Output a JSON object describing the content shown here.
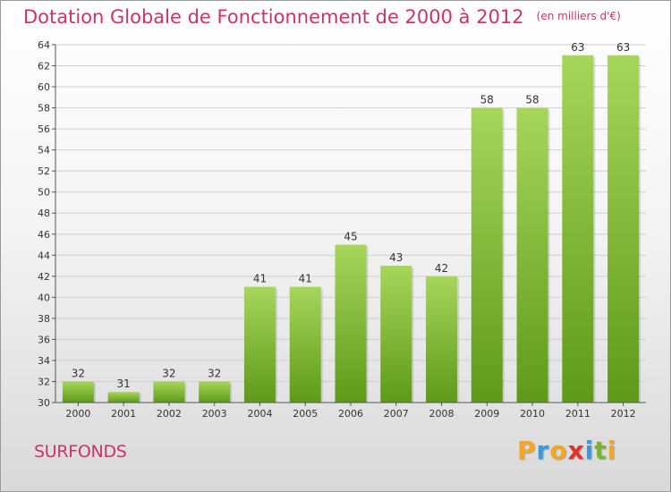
{
  "title": "Dotation Globale de Fonctionnement de 2000 à 2012",
  "unit": "(en milliers d'€)",
  "commune": "SURFONDS",
  "logo": {
    "letters": [
      "P",
      "r",
      "o",
      "x",
      "i",
      "t",
      "i"
    ],
    "colors": [
      "#f5a623",
      "#3b9ad9",
      "#f5a623",
      "#e0312b",
      "#3b9ad9",
      "#7ab32e",
      "#f5a623"
    ]
  },
  "colors": {
    "bar_top": "#a6d65a",
    "bar_bottom": "#5e9a18",
    "title": "#cc3366"
  },
  "chart_data": {
    "type": "bar",
    "categories": [
      "2000",
      "2001",
      "2002",
      "2003",
      "2004",
      "2005",
      "2006",
      "2007",
      "2008",
      "2009",
      "2010",
      "2011",
      "2012"
    ],
    "values": [
      32,
      31,
      32,
      32,
      41,
      41,
      45,
      43,
      42,
      58,
      58,
      63,
      63
    ],
    "ylim": [
      30,
      64
    ],
    "yticks": [
      30,
      32,
      34,
      36,
      38,
      40,
      42,
      44,
      46,
      48,
      50,
      52,
      54,
      56,
      58,
      60,
      62,
      64
    ],
    "grid": true,
    "title": "Dotation Globale de Fonctionnement de 2000 à 2012",
    "xlabel": "",
    "ylabel": ""
  }
}
